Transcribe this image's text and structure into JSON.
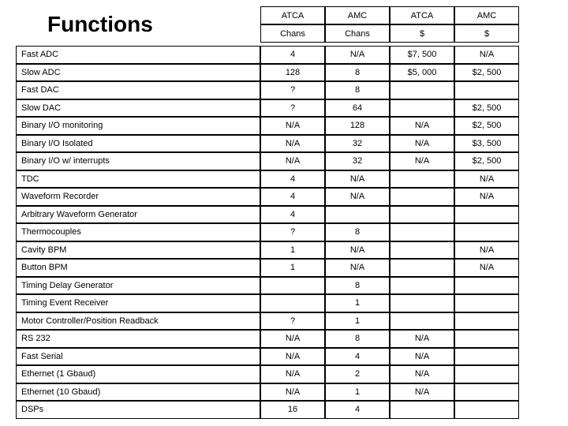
{
  "title": "Functions",
  "header_row1": [
    "ATCA",
    "AMC",
    "ATCA",
    "AMC"
  ],
  "header_row2": [
    "Chans",
    "Chans",
    "$",
    "$"
  ],
  "rows": [
    {
      "label": "Fast ADC",
      "c": [
        "4",
        "N/A",
        "$7, 500",
        "N/A"
      ]
    },
    {
      "label": "Slow ADC",
      "c": [
        "128",
        "8",
        "$5, 000",
        "$2, 500"
      ]
    },
    {
      "label": "Fast DAC",
      "c": [
        "?",
        "8",
        "",
        ""
      ]
    },
    {
      "label": "Slow DAC",
      "c": [
        "?",
        "64",
        "",
        "$2, 500"
      ]
    },
    {
      "label": "Binary I/O monitoring",
      "c": [
        "N/A",
        "128",
        "N/A",
        "$2, 500"
      ]
    },
    {
      "label": "Binary I/O Isolated",
      "c": [
        "N/A",
        "32",
        "N/A",
        "$3, 500"
      ]
    },
    {
      "label": "Binary I/O w/ interrupts",
      "c": [
        "N/A",
        "32",
        "N/A",
        "$2, 500"
      ]
    },
    {
      "label": "TDC",
      "c": [
        "4",
        "N/A",
        "",
        "N/A"
      ]
    },
    {
      "label": "Waveform Recorder",
      "c": [
        "4",
        "N/A",
        "",
        "N/A"
      ]
    },
    {
      "label": "Arbitrary Waveform Generator",
      "c": [
        "4",
        "",
        "",
        ""
      ]
    },
    {
      "label": "Thermocouples",
      "c": [
        "?",
        "8",
        "",
        ""
      ]
    },
    {
      "label": "Cavity BPM",
      "c": [
        "1",
        "N/A",
        "",
        "N/A"
      ]
    },
    {
      "label": "Button BPM",
      "c": [
        "1",
        "N/A",
        "",
        "N/A"
      ]
    },
    {
      "label": "Timing Delay Generator",
      "c": [
        "",
        "8",
        "",
        ""
      ]
    },
    {
      "label": "Timing Event Receiver",
      "c": [
        "",
        "1",
        "",
        ""
      ]
    },
    {
      "label": "Motor Controller/Position Readback",
      "c": [
        "?",
        "1",
        "",
        ""
      ]
    },
    {
      "label": "RS 232",
      "c": [
        "N/A",
        "8",
        "N/A",
        ""
      ]
    },
    {
      "label": "Fast Serial",
      "c": [
        "N/A",
        "4",
        "N/A",
        ""
      ]
    },
    {
      "label": "Ethernet (1 Gbaud)",
      "c": [
        "N/A",
        "2",
        "N/A",
        ""
      ]
    },
    {
      "label": "Ethernet (10 Gbaud)",
      "c": [
        "N/A",
        "1",
        "N/A",
        ""
      ]
    },
    {
      "label": "DSPs",
      "c": [
        "16",
        "4",
        "",
        ""
      ]
    }
  ]
}
